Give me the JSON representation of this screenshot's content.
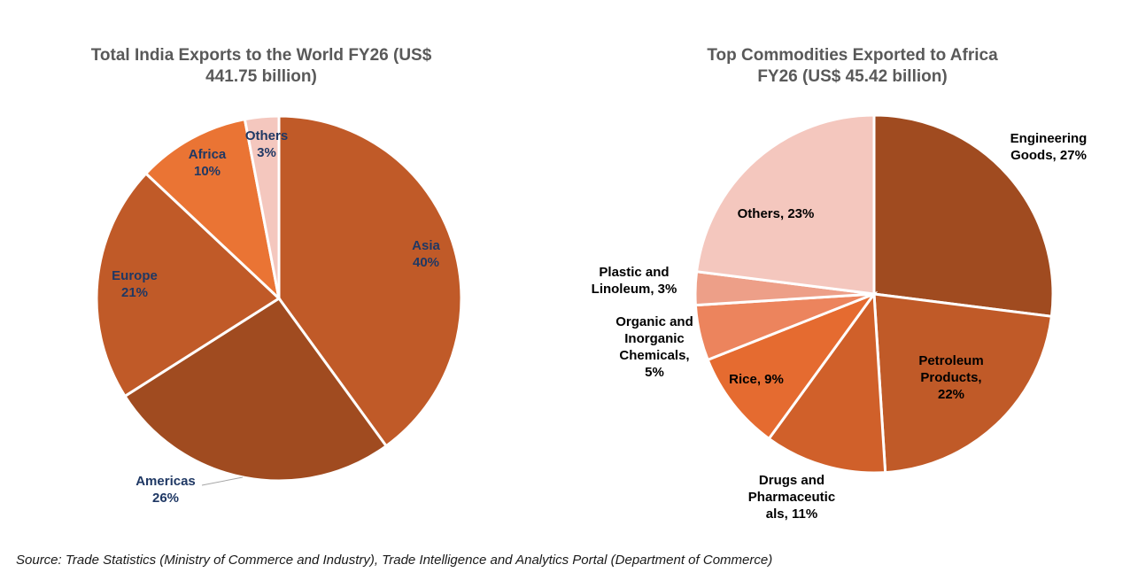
{
  "chart_data": [
    {
      "type": "pie",
      "title": "Total India Exports to the World FY26 (US$\n441.75 billion)",
      "slices": [
        {
          "label": "Asia",
          "value": 40,
          "value_label": "40%",
          "color": "#c05a28"
        },
        {
          "label": "Americas",
          "value": 26,
          "value_label": "26%",
          "color": "#a04b20"
        },
        {
          "label": "Europe",
          "value": 21,
          "value_label": "21%",
          "color": "#c05a28"
        },
        {
          "label": "Africa",
          "value": 10,
          "value_label": "10%",
          "color": "#ea7434"
        },
        {
          "label": "Others",
          "value": 3,
          "value_label": "3%",
          "color": "#f4c7be"
        }
      ]
    },
    {
      "type": "pie",
      "title": "Top Commodities Exported to Africa\nFY26 (US$ 45.42 billion)",
      "slices": [
        {
          "label": "Engineering Goods, 27%",
          "value": 27,
          "color": "#a04b20"
        },
        {
          "label": "Petroleum Products, 22%",
          "value": 22,
          "color": "#c05a28"
        },
        {
          "label": "Drugs and Pharmaceuticals, 11%",
          "value": 11,
          "color": "#d0602a"
        },
        {
          "label": "Rice, 9%",
          "value": 9,
          "color": "#e56b30"
        },
        {
          "label": "Organic and Inorganic Chemicals, 5%",
          "value": 5,
          "color": "#ec845d"
        },
        {
          "label": "Plastic and Linoleum, 3%",
          "value": 3,
          "color": "#ed9f88"
        },
        {
          "label": "Others, 23%",
          "value": 23,
          "color": "#f4c7be"
        }
      ]
    }
  ],
  "source": "Source: Trade Statistics (Ministry of Commerce and Industry), Trade Intelligence and Analytics Portal (Department of Commerce)"
}
